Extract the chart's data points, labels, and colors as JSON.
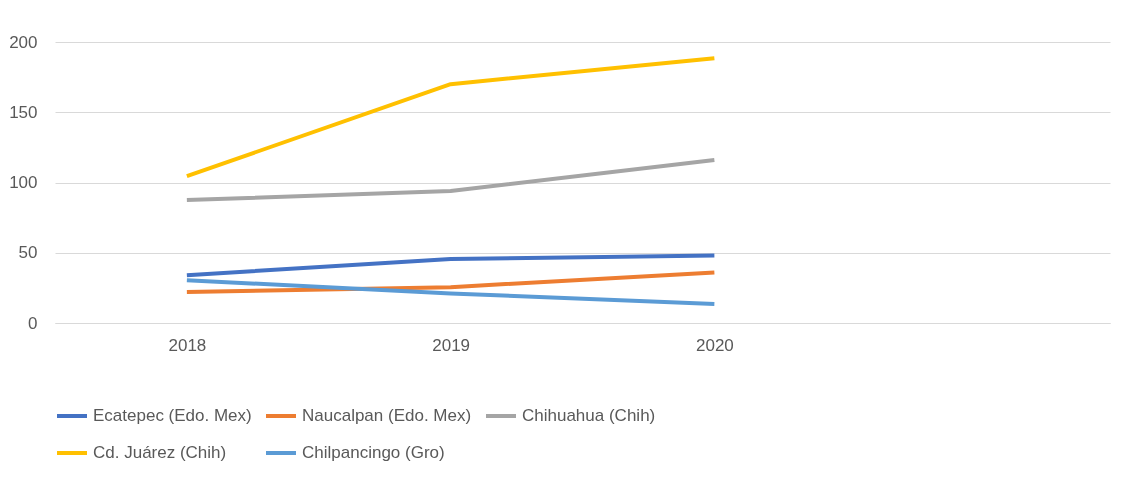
{
  "chart_data": {
    "type": "line",
    "categories": [
      "2018",
      "2019",
      "2020",
      null
    ],
    "series": [
      {
        "name": "Ecatepec (Edo. Mex)",
        "color": "#4472c4",
        "values": [
          34,
          45.5,
          48,
          null
        ]
      },
      {
        "name": "Naucalpan (Edo. Mex)",
        "color": "#ed7d31",
        "values": [
          22,
          25.5,
          36,
          null
        ]
      },
      {
        "name": "Chihuahua (Chih)",
        "color": "#a5a5a5",
        "values": [
          87.5,
          94,
          116,
          null
        ]
      },
      {
        "name": "Cd. Juárez (Chih)",
        "color": "#ffc000",
        "values": [
          104.5,
          170,
          188.5,
          null
        ]
      },
      {
        "name": "Chilpancingo (Gro)",
        "color": "#5b9bd5",
        "values": [
          30.5,
          21,
          13.5,
          null
        ]
      }
    ],
    "ylim": [
      0,
      200
    ],
    "yticks": [
      0,
      50,
      100,
      150,
      200
    ],
    "grid": "y",
    "legend": "bottom",
    "marker": "none",
    "line_style": "solid"
  }
}
